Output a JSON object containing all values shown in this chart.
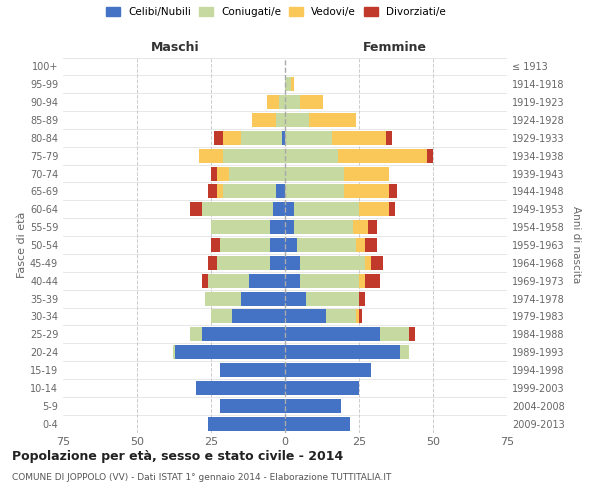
{
  "age_groups": [
    "0-4",
    "5-9",
    "10-14",
    "15-19",
    "20-24",
    "25-29",
    "30-34",
    "35-39",
    "40-44",
    "45-49",
    "50-54",
    "55-59",
    "60-64",
    "65-69",
    "70-74",
    "75-79",
    "80-84",
    "85-89",
    "90-94",
    "95-99",
    "100+"
  ],
  "birth_years": [
    "2009-2013",
    "2004-2008",
    "1999-2003",
    "1994-1998",
    "1989-1993",
    "1984-1988",
    "1979-1983",
    "1974-1978",
    "1969-1973",
    "1964-1968",
    "1959-1963",
    "1954-1958",
    "1949-1953",
    "1944-1948",
    "1939-1943",
    "1934-1938",
    "1929-1933",
    "1924-1928",
    "1919-1923",
    "1914-1918",
    "≤ 1913"
  ],
  "colors": {
    "celibi": "#4472C4",
    "coniugati": "#C5D9A0",
    "vedovi": "#FAC858",
    "divorziati": "#C0392B"
  },
  "males": {
    "celibi": [
      26,
      22,
      30,
      22,
      37,
      28,
      18,
      15,
      12,
      5,
      5,
      5,
      4,
      3,
      0,
      0,
      1,
      0,
      0,
      0,
      0
    ],
    "coniugati": [
      0,
      0,
      0,
      0,
      1,
      4,
      7,
      12,
      14,
      18,
      17,
      20,
      24,
      18,
      19,
      21,
      14,
      3,
      2,
      0,
      0
    ],
    "vedovi": [
      0,
      0,
      0,
      0,
      0,
      0,
      0,
      0,
      0,
      0,
      0,
      0,
      0,
      2,
      4,
      8,
      6,
      8,
      4,
      0,
      0
    ],
    "divorziati": [
      0,
      0,
      0,
      0,
      0,
      0,
      0,
      0,
      2,
      3,
      3,
      0,
      4,
      3,
      2,
      0,
      3,
      0,
      0,
      0,
      0
    ]
  },
  "females": {
    "nubili": [
      22,
      19,
      25,
      29,
      39,
      32,
      14,
      7,
      5,
      5,
      4,
      3,
      3,
      0,
      0,
      0,
      0,
      0,
      0,
      0,
      0
    ],
    "coniugati": [
      0,
      0,
      0,
      0,
      3,
      10,
      10,
      18,
      20,
      22,
      20,
      20,
      22,
      20,
      20,
      18,
      16,
      8,
      5,
      2,
      0
    ],
    "vedovi": [
      0,
      0,
      0,
      0,
      0,
      0,
      1,
      0,
      2,
      2,
      3,
      5,
      10,
      15,
      15,
      30,
      18,
      16,
      8,
      1,
      0
    ],
    "divorziati": [
      0,
      0,
      0,
      0,
      0,
      2,
      1,
      2,
      5,
      4,
      4,
      3,
      2,
      3,
      0,
      2,
      2,
      0,
      0,
      0,
      0
    ]
  },
  "xlim": 75,
  "title": "Popolazione per età, sesso e stato civile - 2014",
  "subtitle": "COMUNE DI JOPPOLO (VV) - Dati ISTAT 1° gennaio 2014 - Elaborazione TUTTITALIA.IT",
  "ylabel_left": "Fasce di età",
  "ylabel_right": "Anni di nascita",
  "xlabel_left": "Maschi",
  "xlabel_right": "Femmine",
  "legend_labels": [
    "Celibi/Nubili",
    "Coniugati/e",
    "Vedovi/e",
    "Divorziati/e"
  ],
  "background_color": "#ffffff",
  "grid_color": "#cccccc"
}
